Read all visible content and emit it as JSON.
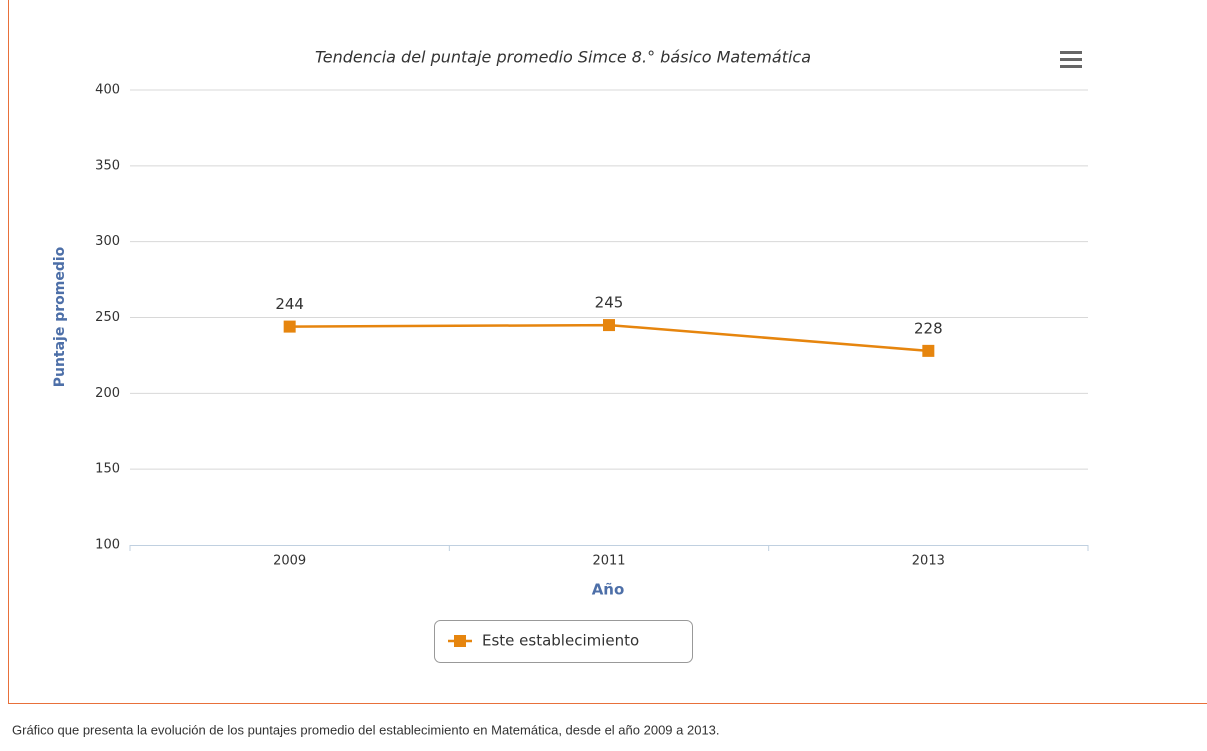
{
  "chart_data": {
    "type": "line",
    "title": "Tendencia del puntaje promedio Simce 8.° básico Matemática",
    "x_label": "Año",
    "y_label": "Puntaje promedio",
    "categories": [
      "2009",
      "2011",
      "2013"
    ],
    "series": [
      {
        "name": "Este establecimiento",
        "color": "#e6850e",
        "values": [
          244,
          245,
          228
        ]
      }
    ],
    "ylim": [
      100,
      400
    ],
    "yticks": [
      100,
      150,
      200,
      250,
      300,
      350,
      400
    ],
    "grid": true,
    "data_labels": true,
    "legend": "bottom"
  },
  "caption": "Gráfico que presenta la evolución de los puntajes promedio del establecimiento en Matemática, desde el año 2009 a 2013."
}
